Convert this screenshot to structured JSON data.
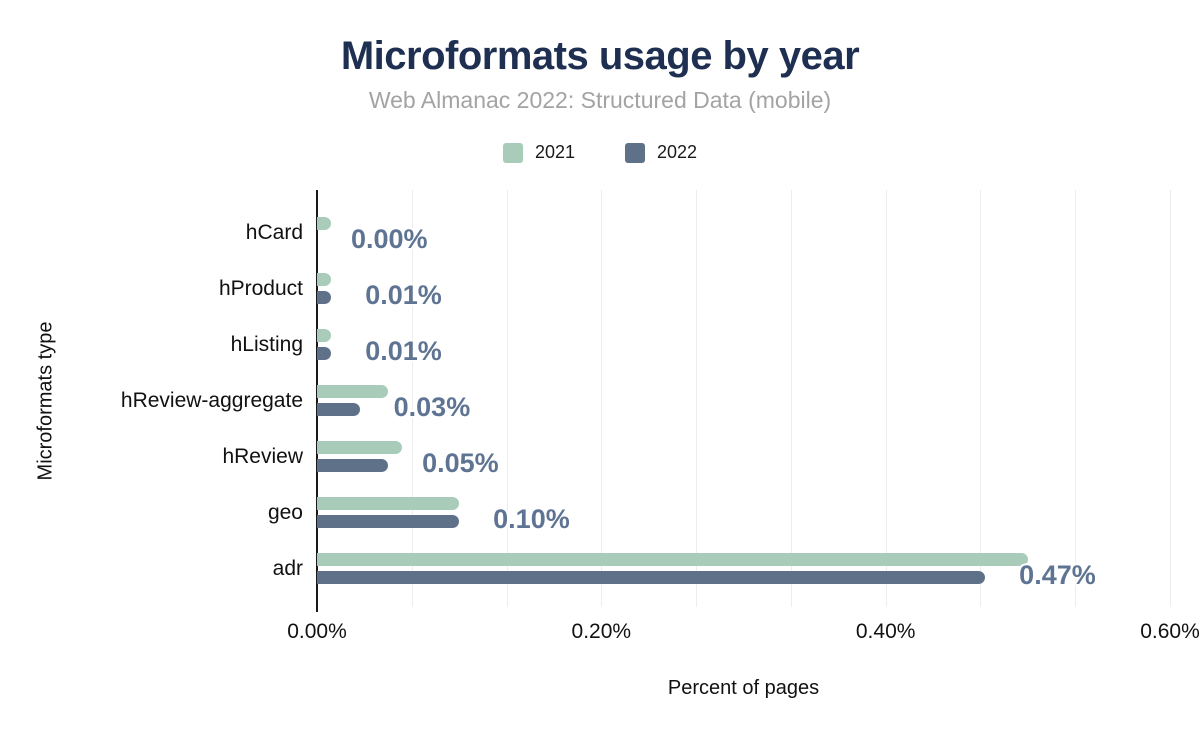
{
  "chart_data": {
    "type": "bar",
    "orientation": "horizontal",
    "title": "Microformats usage by year",
    "subtitle": "Web Almanac 2022: Structured Data (mobile)",
    "xlabel": "Percent of pages",
    "ylabel": "Microformats type",
    "unit": "%",
    "xlim": [
      0,
      0.6
    ],
    "x_tick_values": [
      0,
      0.2,
      0.4,
      0.6
    ],
    "x_tick_labels": [
      "0.00%",
      "0.20%",
      "0.40%",
      "0.60%"
    ],
    "minor_gridlines_per_major": 3,
    "grid": true,
    "legend_position": "top",
    "categories": [
      "hCard",
      "hProduct",
      "hListing",
      "hReview-aggregate",
      "hReview",
      "geo",
      "adr"
    ],
    "series": [
      {
        "name": "2021",
        "color": "#a8ccb9",
        "values": [
          0.01,
          0.01,
          0.01,
          0.05,
          0.06,
          0.1,
          0.5
        ]
      },
      {
        "name": "2022",
        "color": "#5f7189",
        "values": [
          0.0,
          0.01,
          0.01,
          0.03,
          0.05,
          0.1,
          0.47
        ]
      }
    ],
    "bar_value_labels": [
      "0.00%",
      "0.01%",
      "0.01%",
      "0.03%",
      "0.05%",
      "0.10%",
      "0.47%"
    ],
    "colors": {
      "title": "#1e2f52",
      "subtitle": "#a3a3a3",
      "value_label": "#5e7492",
      "gridline": "#ededed",
      "axis_line": "#1a1a1a"
    }
  }
}
